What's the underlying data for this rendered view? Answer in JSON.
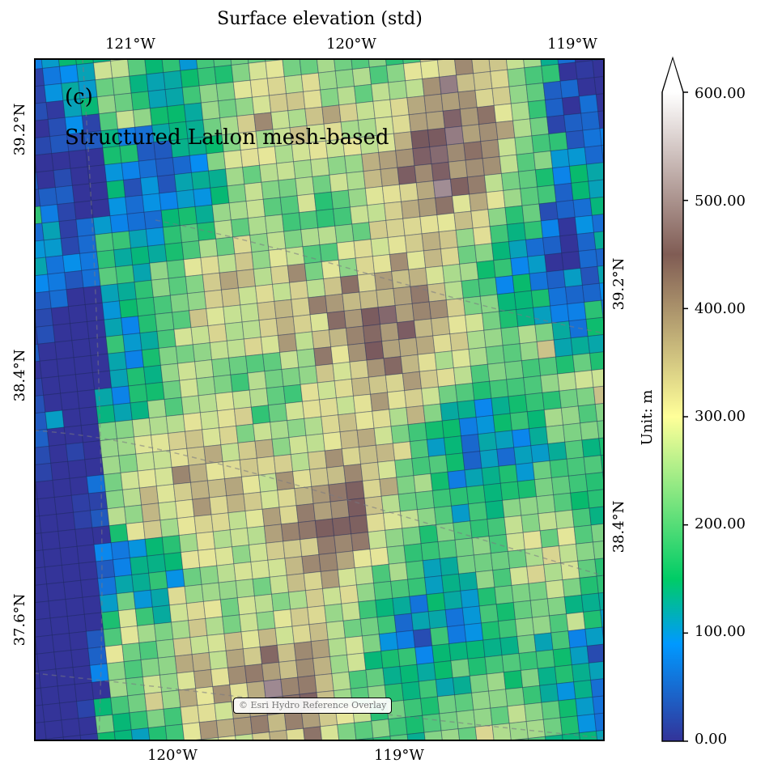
{
  "figure": {
    "title": "Surface elevation (std)",
    "panel_label": "(c)",
    "panel_subtitle": "Structured Latlon mesh-based",
    "attribution": "© Esri Hydro Reference Overlay"
  },
  "axes": {
    "top_ticks": [
      "121°W",
      "120°W",
      "119°W"
    ],
    "bottom_ticks": [
      "120°W",
      "119°W"
    ],
    "left_ticks": [
      "39.2°N",
      "38.4°N",
      "37.6°N"
    ],
    "right_ticks": [
      "39.2°N",
      "38.4°N"
    ]
  },
  "colorbar": {
    "label": "Unit: m",
    "ticks": [
      "600.00",
      "500.00",
      "400.00",
      "300.00",
      "200.00",
      "100.00",
      "0.00"
    ],
    "min": 0,
    "max": 600,
    "extend": "max",
    "colormap": "terrain",
    "colormap_stops": [
      {
        "v": 0.0,
        "color": "#333399"
      },
      {
        "v": 0.15,
        "color": "#0099ff"
      },
      {
        "v": 0.25,
        "color": "#00cc66"
      },
      {
        "v": 0.5,
        "color": "#ffff99"
      },
      {
        "v": 0.75,
        "color": "#805c54"
      },
      {
        "v": 1.0,
        "color": "#ffffff"
      }
    ]
  }
}
